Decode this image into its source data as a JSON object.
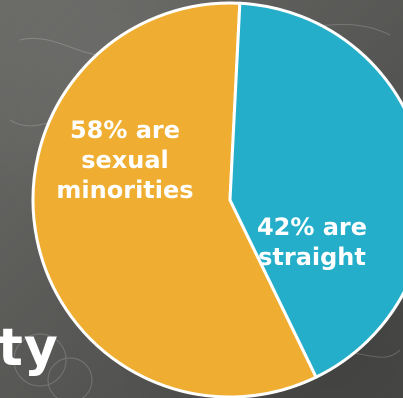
{
  "chart_data": {
    "type": "pie",
    "title": "",
    "slices": [
      {
        "label": "58% are sexual minorities",
        "lines": [
          "58% are",
          "sexual",
          "minorities"
        ],
        "value": 58,
        "color": "#efae31"
      },
      {
        "label": "42% are straight",
        "lines": [
          "42% are",
          "straight"
        ],
        "value": 42,
        "color": "#24aec9"
      }
    ]
  },
  "background_text": "ty"
}
